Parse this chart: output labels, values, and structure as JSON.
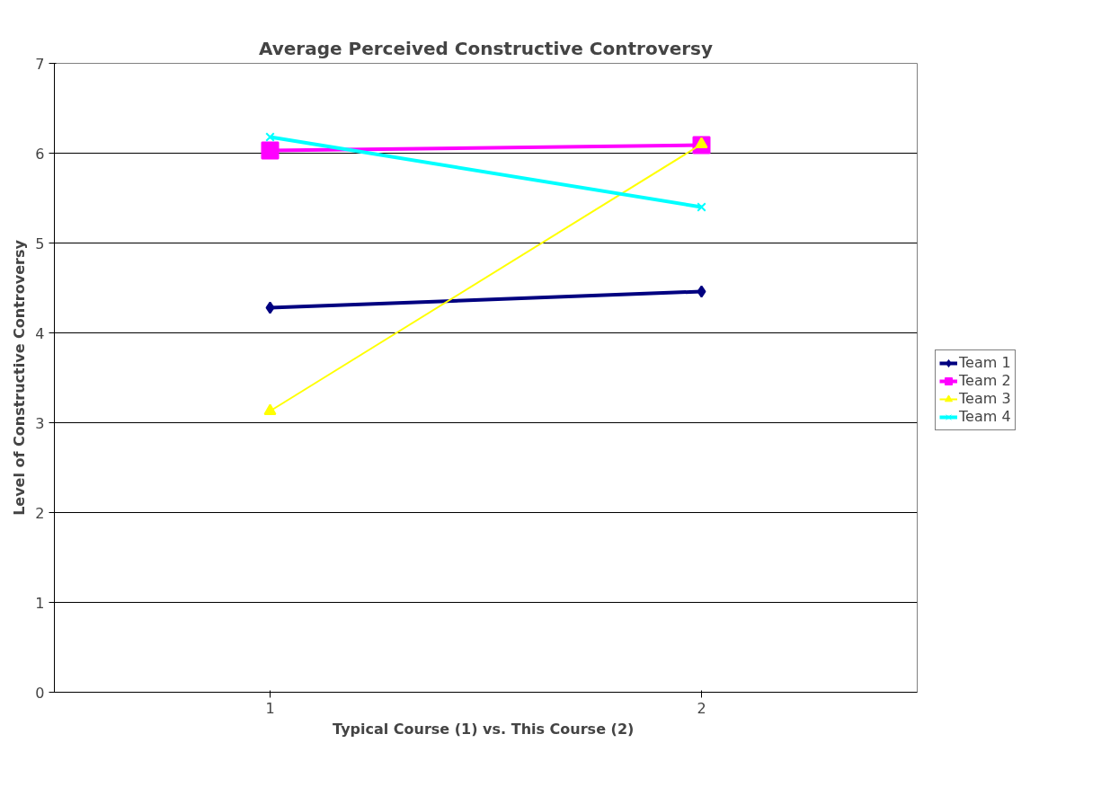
{
  "chart_data": {
    "type": "line",
    "title": "Average Perceived Constructive Controversy",
    "xlabel": "Typical Course (1)  vs. This Course (2)",
    "ylabel": "Level of Constructive Controversy",
    "categories": [
      "1",
      "2"
    ],
    "series": [
      {
        "name": "Team 1",
        "color": "#000080",
        "marker": "diamond",
        "values": [
          4.28,
          4.46
        ]
      },
      {
        "name": "Team 2",
        "color": "#ff00ff",
        "marker": "square",
        "values": [
          6.03,
          6.09
        ]
      },
      {
        "name": "Team 3",
        "color": "#ffff00",
        "marker": "triangle",
        "values": [
          3.13,
          6.1
        ]
      },
      {
        "name": "Team 4",
        "color": "#00ffff",
        "marker": "cross",
        "values": [
          6.18,
          5.4
        ]
      }
    ],
    "ylim": [
      0,
      7
    ],
    "yticks": [
      0,
      1,
      2,
      3,
      4,
      5,
      6,
      7
    ],
    "grid": "y",
    "legend": "right"
  }
}
